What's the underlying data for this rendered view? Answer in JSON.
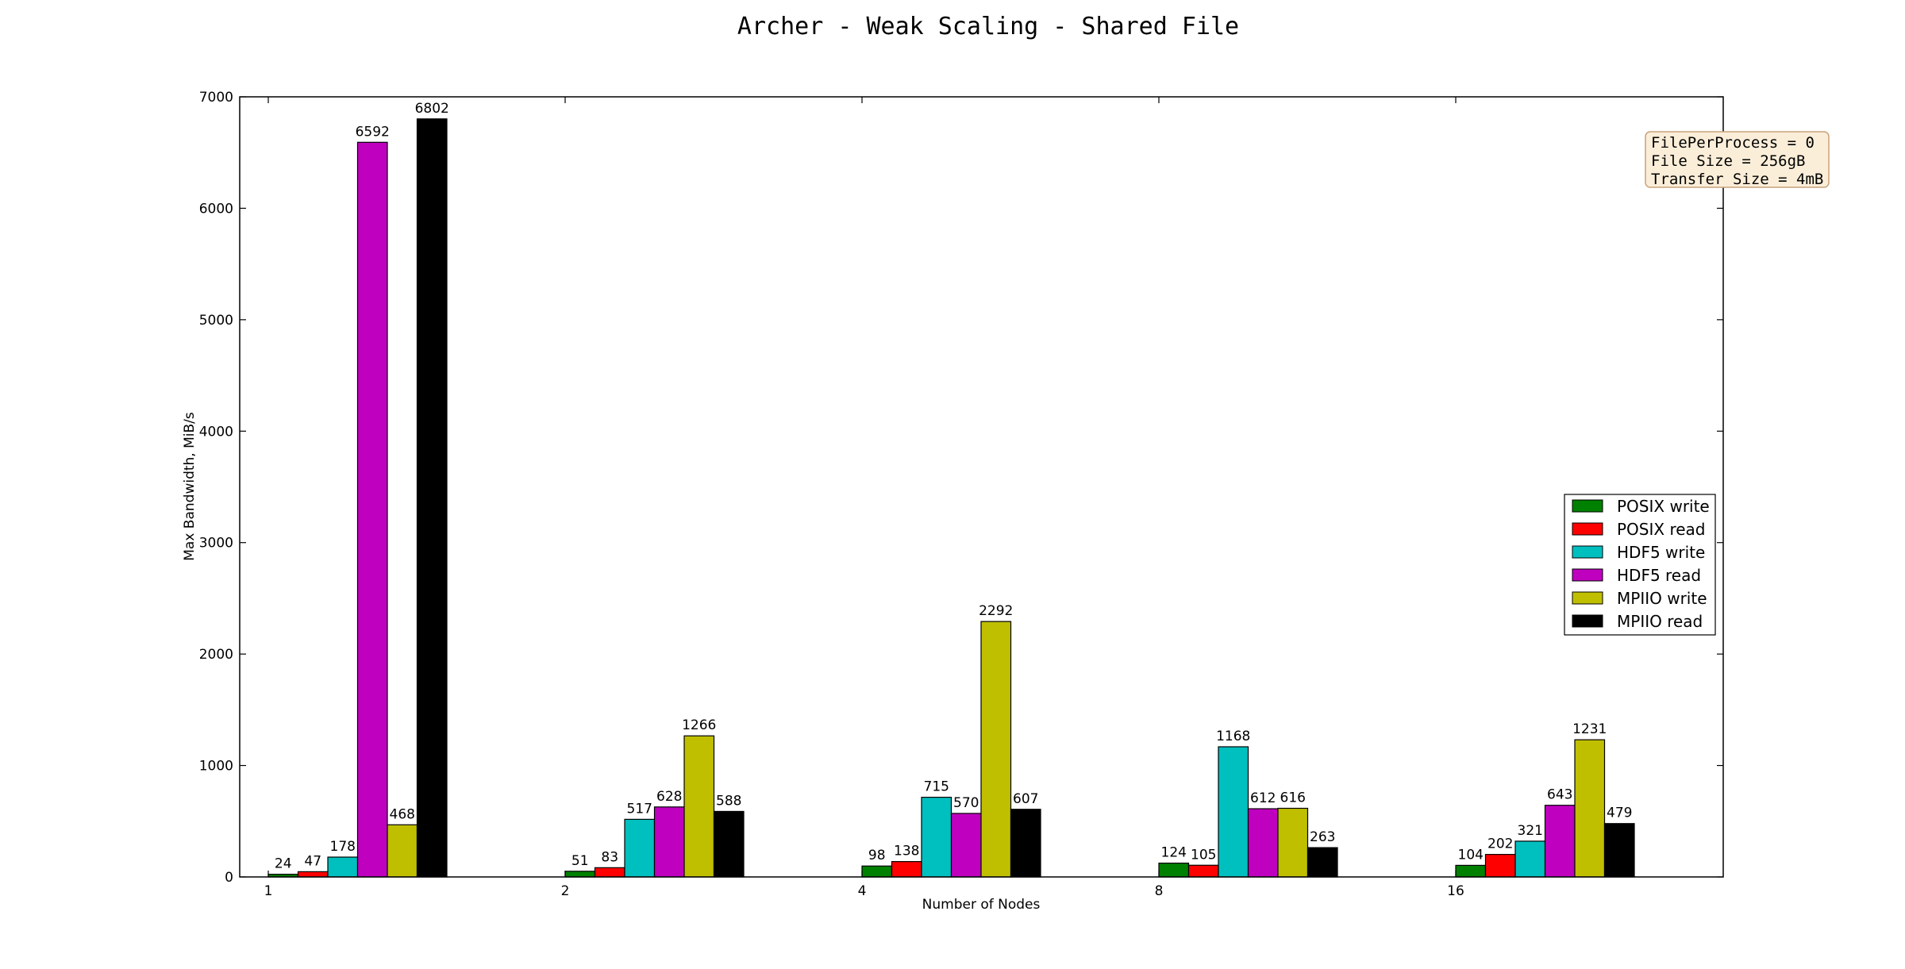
{
  "chart_data": {
    "type": "bar",
    "title": "Archer - Weak Scaling - Shared File",
    "xlabel": "Number of Nodes",
    "ylabel": "Max Bandwidth, MiB/s",
    "ylim": [
      0,
      7000
    ],
    "yticks": [
      0,
      1000,
      2000,
      3000,
      4000,
      5000,
      6000,
      7000
    ],
    "categories": [
      "1",
      "2",
      "4",
      "8",
      "16"
    ],
    "series": [
      {
        "name": "POSIX write",
        "color": "#008000",
        "values": [
          24,
          51,
          98,
          124,
          104
        ]
      },
      {
        "name": "POSIX read",
        "color": "#ff0000",
        "values": [
          47,
          83,
          138,
          105,
          202
        ]
      },
      {
        "name": "HDF5 write",
        "color": "#00bfbf",
        "values": [
          178,
          517,
          715,
          1168,
          321
        ]
      },
      {
        "name": "HDF5 read",
        "color": "#bf00bf",
        "values": [
          6592,
          628,
          570,
          612,
          643
        ]
      },
      {
        "name": "MPIIO write",
        "color": "#bfbf00",
        "values": [
          468,
          1266,
          2292,
          616,
          1231
        ]
      },
      {
        "name": "MPIIO read",
        "color": "#000000",
        "values": [
          6802,
          588,
          607,
          263,
          479
        ]
      }
    ],
    "legend_position": "center-right",
    "grid": false,
    "annotation": {
      "lines": [
        "FilePerProcess = 0",
        "File Size = 256gB",
        "Transfer Size = 4mB"
      ],
      "background": "#fbeed9",
      "border": "#c8a27a"
    }
  }
}
